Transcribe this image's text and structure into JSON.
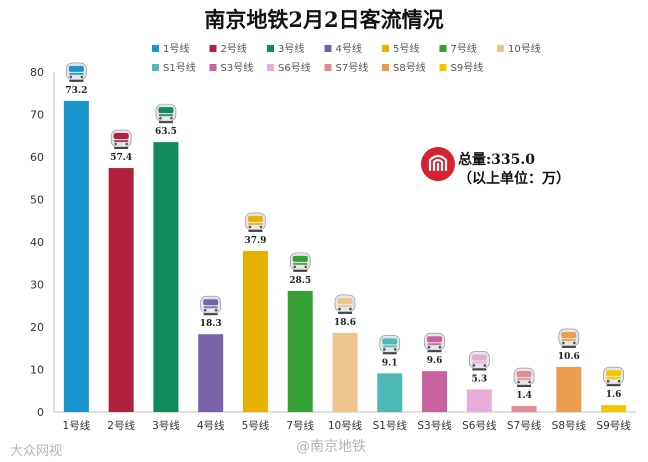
{
  "chart_data": {
    "type": "bar",
    "title": "南京地铁2月2日客流情况",
    "categories": [
      "1号线",
      "2号线",
      "3号线",
      "4号线",
      "5号线",
      "7号线",
      "10号线",
      "S1号线",
      "S3号线",
      "S6号线",
      "S7号线",
      "S8号线",
      "S9号线"
    ],
    "values": [
      73.2,
      57.4,
      63.5,
      18.3,
      37.9,
      28.5,
      18.6,
      9.1,
      9.6,
      5.3,
      1.4,
      10.6,
      1.6
    ],
    "value_labels": [
      "73.2",
      "57.4",
      "63.5",
      "18.3",
      "37.9",
      "28.5",
      "18.6",
      "9.1",
      "9.6",
      "5.3",
      "1.4",
      "10.6",
      "1.6"
    ],
    "colors": [
      "#1a96cc",
      "#b0213f",
      "#118a5c",
      "#7a63a8",
      "#e6b200",
      "#36a035",
      "#f0c48f",
      "#4dbab6",
      "#c9619f",
      "#e9abd7",
      "#e28a96",
      "#eb9c4f",
      "#f2c500"
    ],
    "ylim": [
      0,
      80
    ],
    "yticks": [
      0,
      10,
      20,
      30,
      40,
      50,
      60,
      70,
      80
    ],
    "ytick_labels": [
      "0",
      "10",
      "20",
      "30",
      "40",
      "50",
      "60",
      "70",
      "80"
    ],
    "legend_position": "top",
    "legend": [
      [
        "1号线",
        "2号线",
        "3号线",
        "4号线",
        "5号线",
        "7号线",
        "10号线"
      ],
      [
        "S1号线",
        "S3号线",
        "S6号线",
        "S7号线",
        "S8号线",
        "S9号线"
      ]
    ],
    "grid": false
  },
  "total": {
    "line1": "总量:335.0",
    "line2": "（以上单位：万）",
    "logo_icon": "nanjing-metro-logo-icon",
    "brand_color": "#d9202e"
  },
  "watermarks": {
    "left": "大众网视",
    "right": "@南京地铁"
  },
  "icons": {
    "train": "metro-train-icon"
  }
}
